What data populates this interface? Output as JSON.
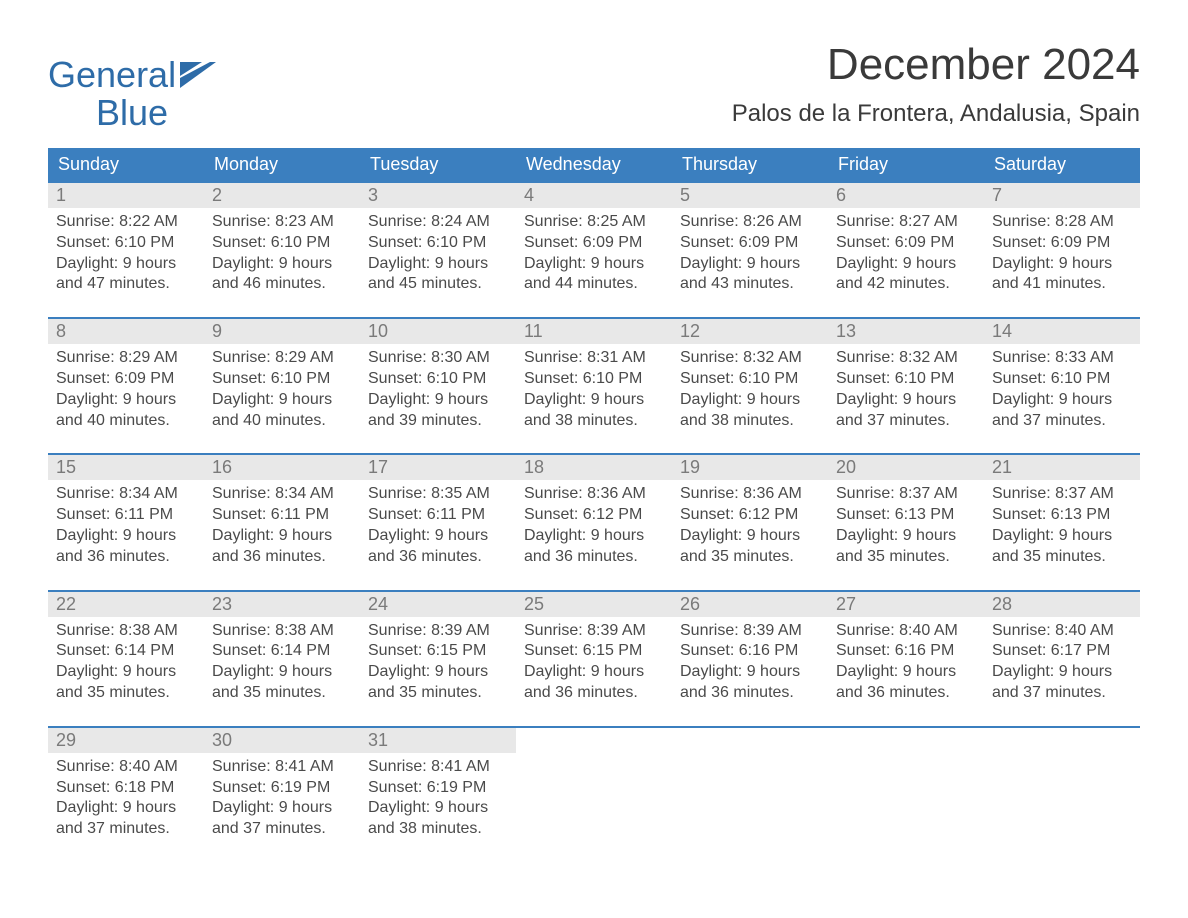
{
  "logo": {
    "word1": "General",
    "word2": "Blue",
    "color": "#2e6ca8"
  },
  "title": "December 2024",
  "location": "Palos de la Frontera, Andalusia, Spain",
  "calendar": {
    "header_bg": "#3b7fbf",
    "daynum_bg": "#e8e8e8",
    "rule_color": "#3b7fbf",
    "dow": [
      "Sunday",
      "Monday",
      "Tuesday",
      "Wednesday",
      "Thursday",
      "Friday",
      "Saturday"
    ],
    "labels": {
      "sunrise": "Sunrise:",
      "sunset": "Sunset:",
      "daylight": "Daylight:"
    },
    "weeks": [
      [
        {
          "n": "1",
          "sunrise": "8:22 AM",
          "sunset": "6:10 PM",
          "daylight1": "9 hours",
          "daylight2": "and 47 minutes."
        },
        {
          "n": "2",
          "sunrise": "8:23 AM",
          "sunset": "6:10 PM",
          "daylight1": "9 hours",
          "daylight2": "and 46 minutes."
        },
        {
          "n": "3",
          "sunrise": "8:24 AM",
          "sunset": "6:10 PM",
          "daylight1": "9 hours",
          "daylight2": "and 45 minutes."
        },
        {
          "n": "4",
          "sunrise": "8:25 AM",
          "sunset": "6:09 PM",
          "daylight1": "9 hours",
          "daylight2": "and 44 minutes."
        },
        {
          "n": "5",
          "sunrise": "8:26 AM",
          "sunset": "6:09 PM",
          "daylight1": "9 hours",
          "daylight2": "and 43 minutes."
        },
        {
          "n": "6",
          "sunrise": "8:27 AM",
          "sunset": "6:09 PM",
          "daylight1": "9 hours",
          "daylight2": "and 42 minutes."
        },
        {
          "n": "7",
          "sunrise": "8:28 AM",
          "sunset": "6:09 PM",
          "daylight1": "9 hours",
          "daylight2": "and 41 minutes."
        }
      ],
      [
        {
          "n": "8",
          "sunrise": "8:29 AM",
          "sunset": "6:09 PM",
          "daylight1": "9 hours",
          "daylight2": "and 40 minutes."
        },
        {
          "n": "9",
          "sunrise": "8:29 AM",
          "sunset": "6:10 PM",
          "daylight1": "9 hours",
          "daylight2": "and 40 minutes."
        },
        {
          "n": "10",
          "sunrise": "8:30 AM",
          "sunset": "6:10 PM",
          "daylight1": "9 hours",
          "daylight2": "and 39 minutes."
        },
        {
          "n": "11",
          "sunrise": "8:31 AM",
          "sunset": "6:10 PM",
          "daylight1": "9 hours",
          "daylight2": "and 38 minutes."
        },
        {
          "n": "12",
          "sunrise": "8:32 AM",
          "sunset": "6:10 PM",
          "daylight1": "9 hours",
          "daylight2": "and 38 minutes."
        },
        {
          "n": "13",
          "sunrise": "8:32 AM",
          "sunset": "6:10 PM",
          "daylight1": "9 hours",
          "daylight2": "and 37 minutes."
        },
        {
          "n": "14",
          "sunrise": "8:33 AM",
          "sunset": "6:10 PM",
          "daylight1": "9 hours",
          "daylight2": "and 37 minutes."
        }
      ],
      [
        {
          "n": "15",
          "sunrise": "8:34 AM",
          "sunset": "6:11 PM",
          "daylight1": "9 hours",
          "daylight2": "and 36 minutes."
        },
        {
          "n": "16",
          "sunrise": "8:34 AM",
          "sunset": "6:11 PM",
          "daylight1": "9 hours",
          "daylight2": "and 36 minutes."
        },
        {
          "n": "17",
          "sunrise": "8:35 AM",
          "sunset": "6:11 PM",
          "daylight1": "9 hours",
          "daylight2": "and 36 minutes."
        },
        {
          "n": "18",
          "sunrise": "8:36 AM",
          "sunset": "6:12 PM",
          "daylight1": "9 hours",
          "daylight2": "and 36 minutes."
        },
        {
          "n": "19",
          "sunrise": "8:36 AM",
          "sunset": "6:12 PM",
          "daylight1": "9 hours",
          "daylight2": "and 35 minutes."
        },
        {
          "n": "20",
          "sunrise": "8:37 AM",
          "sunset": "6:13 PM",
          "daylight1": "9 hours",
          "daylight2": "and 35 minutes."
        },
        {
          "n": "21",
          "sunrise": "8:37 AM",
          "sunset": "6:13 PM",
          "daylight1": "9 hours",
          "daylight2": "and 35 minutes."
        }
      ],
      [
        {
          "n": "22",
          "sunrise": "8:38 AM",
          "sunset": "6:14 PM",
          "daylight1": "9 hours",
          "daylight2": "and 35 minutes."
        },
        {
          "n": "23",
          "sunrise": "8:38 AM",
          "sunset": "6:14 PM",
          "daylight1": "9 hours",
          "daylight2": "and 35 minutes."
        },
        {
          "n": "24",
          "sunrise": "8:39 AM",
          "sunset": "6:15 PM",
          "daylight1": "9 hours",
          "daylight2": "and 35 minutes."
        },
        {
          "n": "25",
          "sunrise": "8:39 AM",
          "sunset": "6:15 PM",
          "daylight1": "9 hours",
          "daylight2": "and 36 minutes."
        },
        {
          "n": "26",
          "sunrise": "8:39 AM",
          "sunset": "6:16 PM",
          "daylight1": "9 hours",
          "daylight2": "and 36 minutes."
        },
        {
          "n": "27",
          "sunrise": "8:40 AM",
          "sunset": "6:16 PM",
          "daylight1": "9 hours",
          "daylight2": "and 36 minutes."
        },
        {
          "n": "28",
          "sunrise": "8:40 AM",
          "sunset": "6:17 PM",
          "daylight1": "9 hours",
          "daylight2": "and 37 minutes."
        }
      ],
      [
        {
          "n": "29",
          "sunrise": "8:40 AM",
          "sunset": "6:18 PM",
          "daylight1": "9 hours",
          "daylight2": "and 37 minutes."
        },
        {
          "n": "30",
          "sunrise": "8:41 AM",
          "sunset": "6:19 PM",
          "daylight1": "9 hours",
          "daylight2": "and 37 minutes."
        },
        {
          "n": "31",
          "sunrise": "8:41 AM",
          "sunset": "6:19 PM",
          "daylight1": "9 hours",
          "daylight2": "and 38 minutes."
        },
        null,
        null,
        null,
        null
      ]
    ]
  }
}
